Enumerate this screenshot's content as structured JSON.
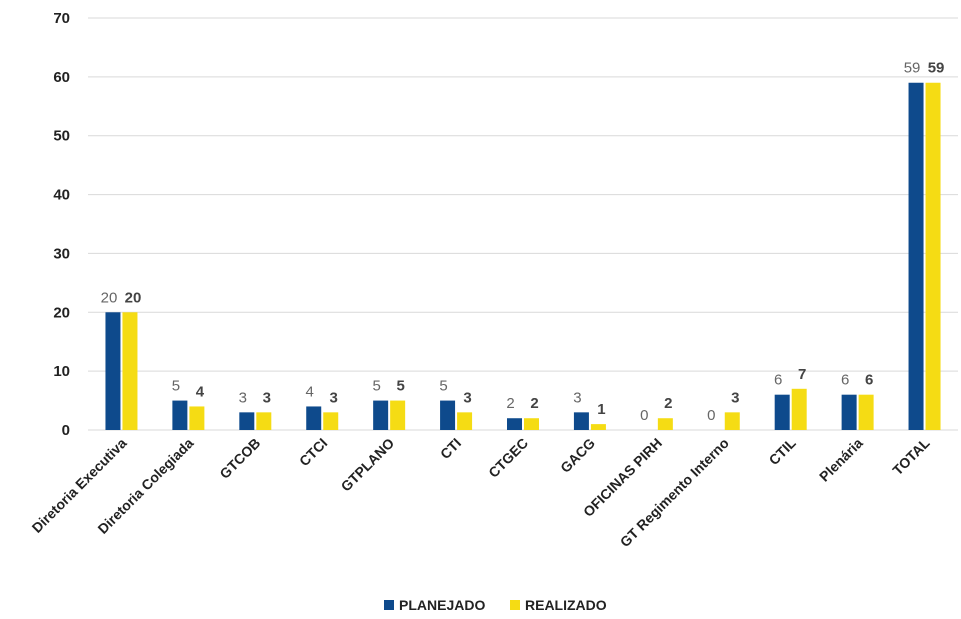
{
  "chart_data": {
    "type": "bar",
    "categories": [
      "Diretoria Executiva",
      "Diretoria Colegiada",
      "GTCOB",
      "CTCI",
      "GTPLANO",
      "CTI",
      "CTGEC",
      "GACG",
      "OFICINAS PIRH",
      "GT Regimento Interno",
      "CTIL",
      "Plenária",
      "TOTAL"
    ],
    "series": [
      {
        "name": "PLANEJADO",
        "color": "#0e4a8c",
        "values": [
          20,
          5,
          3,
          4,
          5,
          5,
          2,
          3,
          0,
          0,
          6,
          6,
          59
        ]
      },
      {
        "name": "REALIZADO",
        "color": "#f5dc14",
        "values": [
          20,
          4,
          3,
          3,
          5,
          3,
          2,
          1,
          2,
          3,
          7,
          6,
          59
        ]
      }
    ],
    "ylim": [
      0,
      70
    ],
    "yticks": [
      0,
      10,
      20,
      30,
      40,
      50,
      60,
      70
    ],
    "grid": true,
    "legend": "bottom"
  }
}
